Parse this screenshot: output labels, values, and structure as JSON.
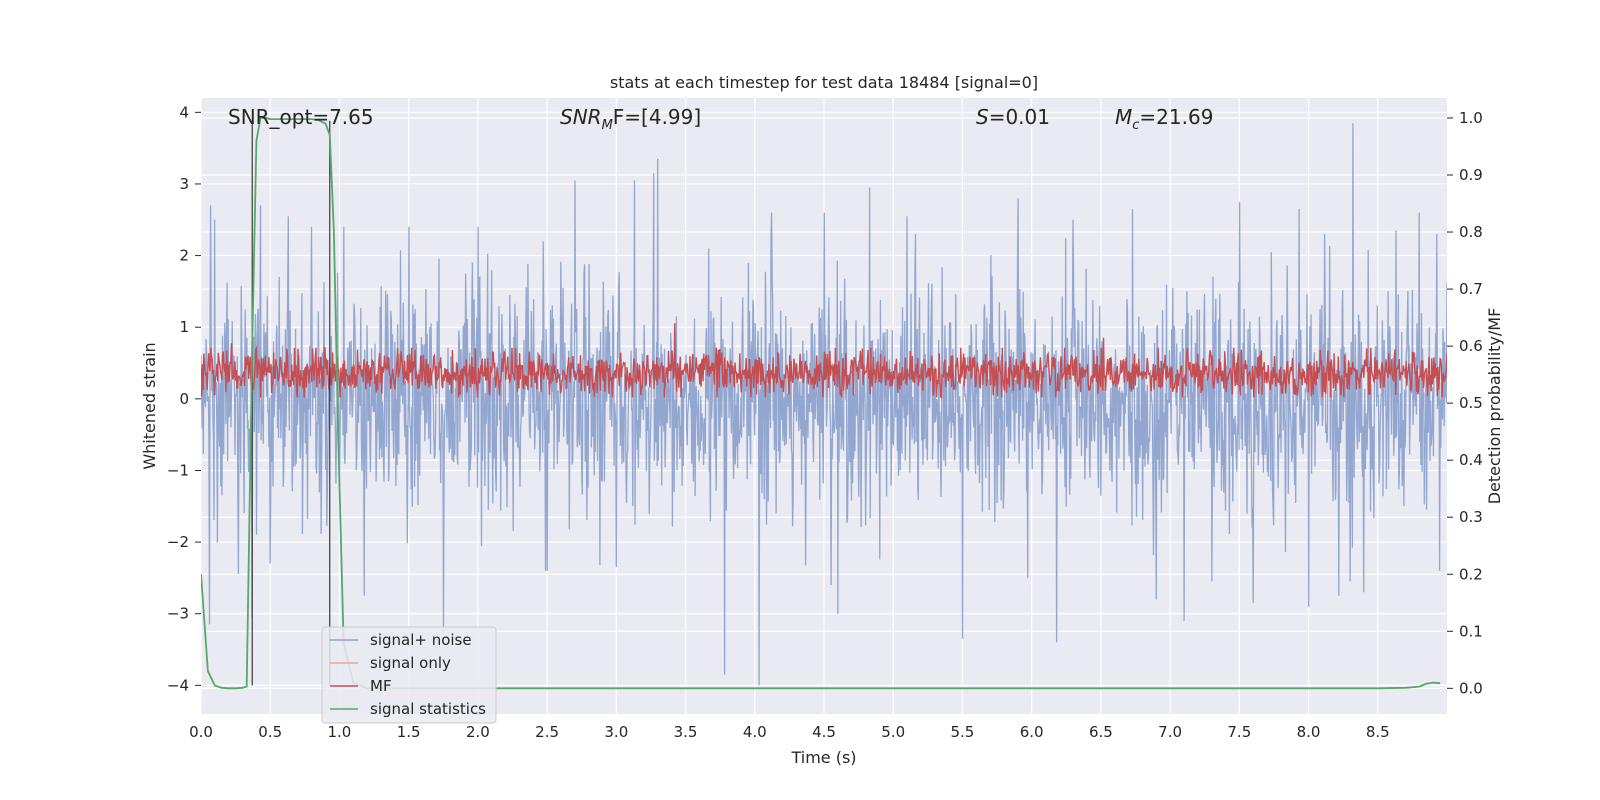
{
  "chart_data": {
    "type": "line",
    "title": "stats at each timestep for test data 18484 [signal=0]",
    "xlabel": "Time (s)",
    "ylabel": "Whitened strain",
    "y2label": "Detection probability/MF",
    "xlim": [
      0.0,
      9.0
    ],
    "ylim": [
      -4.4,
      4.2
    ],
    "y2lim": [
      -0.045,
      1.035
    ],
    "xticks": [
      "0.0",
      "0.5",
      "1.0",
      "1.5",
      "2.0",
      "2.5",
      "3.0",
      "3.5",
      "4.0",
      "4.5",
      "5.0",
      "5.5",
      "6.0",
      "6.5",
      "7.0",
      "7.5",
      "8.0",
      "8.5"
    ],
    "yticks": [
      "4",
      "3",
      "2",
      "1",
      "0",
      "−1",
      "−2",
      "−3",
      "−4"
    ],
    "y2ticks": [
      "1.0",
      "0.9",
      "0.8",
      "0.7",
      "0.6",
      "0.5",
      "0.4",
      "0.3",
      "0.2",
      "0.1",
      "0.0"
    ],
    "grid": true,
    "legend_position": "lower-left",
    "annotations": {
      "snr_opt": "SNR_opt=7.65",
      "snr_mf_name": "SNR",
      "snr_mf_sub": "M",
      "snr_mf_rest": "F=[4.99]",
      "s_name": "S",
      "s_rest": "=0.01",
      "mc_name": "M",
      "mc_sub": "c",
      "mc_rest": "=21.69"
    },
    "vertical_markers_s": [
      0.37,
      0.93
    ],
    "series": [
      {
        "name": "signal+ noise",
        "color": "#8da2ce",
        "description": "whitened strain noise, approx +/-1.5 with peaks to 3.85 and troughs to -4.0",
        "peaks_x": [
          0.07,
          0.1,
          0.43,
          0.63,
          0.8,
          1.03,
          1.5,
          2.0,
          2.47,
          2.7,
          3.13,
          3.27,
          3.3,
          4.12,
          4.5,
          4.83,
          5.1,
          5.5,
          5.9,
          6.3,
          6.73,
          7.1,
          7.5,
          7.93,
          8.32,
          8.63,
          8.8
        ],
        "peaks_y": [
          2.7,
          2.5,
          2.7,
          2.55,
          2.4,
          2.4,
          2.4,
          2.4,
          2.2,
          3.05,
          3.05,
          3.15,
          3.35,
          2.6,
          2.6,
          2.95,
          2.55,
          2.45,
          2.8,
          2.5,
          2.65,
          2.55,
          2.75,
          2.65,
          3.85,
          2.35,
          2.6
        ],
        "troughs_x": [
          0.06,
          0.27,
          0.37,
          0.5,
          1.18,
          1.75,
          2.5,
          3.0,
          3.78,
          4.03,
          4.55,
          4.6,
          5.5,
          5.97,
          6.18,
          6.9,
          7.1,
          7.3,
          7.6,
          8.0,
          8.22,
          8.3,
          8.4
        ],
        "troughs_y": [
          -3.15,
          -2.45,
          -3.05,
          -2.3,
          -2.75,
          -3.25,
          -2.4,
          -2.35,
          -3.85,
          -4.0,
          -2.6,
          -3.0,
          -3.35,
          -2.5,
          -3.4,
          -2.8,
          -3.1,
          -2.55,
          -2.85,
          -2.9,
          -2.75,
          -2.55,
          -2.7
        ]
      },
      {
        "name": "signal only",
        "color": "#e9a98f",
        "description": "no signal injected; flat at 0"
      },
      {
        "name": "MF",
        "color": "#c44e52",
        "description": "matched-filter output around 0.55 on right axis (range ~0.51 to 0.64)",
        "peaks_x": [
          0.22,
          3.42,
          6.52
        ],
        "peaks_y2": [
          0.605,
          0.64,
          0.615
        ]
      },
      {
        "name": "signal statistics",
        "color": "#55a868",
        "description": "detection probability on right axis",
        "x": [
          0.0,
          0.05,
          0.1,
          0.15,
          0.2,
          0.25,
          0.3,
          0.33,
          0.37,
          0.4,
          0.43,
          0.47,
          0.5,
          0.6,
          0.7,
          0.8,
          0.85,
          0.9,
          0.93,
          0.96,
          0.99,
          1.03,
          1.1,
          1.2,
          1.5,
          2.0,
          3.0,
          4.0,
          5.0,
          6.0,
          7.0,
          8.0,
          8.5,
          8.7,
          8.8,
          8.85,
          8.9,
          8.95
        ],
        "y": [
          0.2,
          0.03,
          0.005,
          0.001,
          0.0,
          0.0,
          0.001,
          0.003,
          0.6,
          0.96,
          1.0,
          1.0,
          0.998,
          0.998,
          0.998,
          0.998,
          0.996,
          0.99,
          0.97,
          0.8,
          0.45,
          0.08,
          0.01,
          0.0,
          0.0,
          0.0,
          0.0,
          0.0,
          0.0,
          0.0,
          0.0,
          0.0,
          0.0,
          0.001,
          0.003,
          0.008,
          0.01,
          0.009
        ]
      }
    ]
  }
}
